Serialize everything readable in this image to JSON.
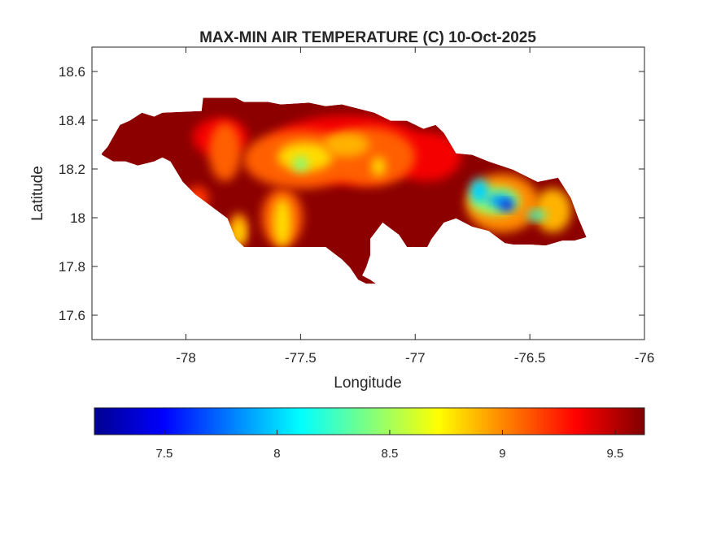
{
  "chart_data": {
    "type": "heatmap",
    "title": "MAX-MIN AIR TEMPERATURE (C) 10-Oct-2025",
    "xlabel": "Longitude",
    "ylabel": "Latitude",
    "xlim": [
      -78.41,
      -76
    ],
    "ylim": [
      17.5,
      18.7
    ],
    "xticks": [
      -78,
      -77.5,
      -77,
      -76.5,
      -76
    ],
    "xtick_labels": [
      "-78",
      "-77.5",
      "-77",
      "-76.5",
      "-76"
    ],
    "yticks": [
      17.6,
      17.8,
      18,
      18.2,
      18.4,
      18.6
    ],
    "ytick_labels": [
      "17.6",
      "17.8",
      "18",
      "18.2",
      "18.4",
      "18.6"
    ],
    "grid": false,
    "colormap": "jet",
    "colorbar": {
      "location": "bottom",
      "clim": [
        7.19,
        9.63
      ],
      "ticks": [
        7.5,
        8,
        8.5,
        9,
        9.5
      ],
      "tick_labels": [
        "7.5",
        "8",
        "8.5",
        "9",
        "9.5"
      ]
    },
    "background_value": 9.6,
    "land_outline": [
      [
        -78.367,
        18.264
      ],
      [
        -78.342,
        18.291
      ],
      [
        -78.288,
        18.381
      ],
      [
        -78.246,
        18.398
      ],
      [
        -78.192,
        18.431
      ],
      [
        -78.139,
        18.415
      ],
      [
        -78.103,
        18.431
      ],
      [
        -77.932,
        18.438
      ],
      [
        -77.925,
        18.492
      ],
      [
        -77.783,
        18.492
      ],
      [
        -77.747,
        18.475
      ],
      [
        -77.641,
        18.475
      ],
      [
        -77.587,
        18.465
      ],
      [
        -77.463,
        18.472
      ],
      [
        -77.391,
        18.458
      ],
      [
        -77.32,
        18.465
      ],
      [
        -77.178,
        18.431
      ],
      [
        -77.107,
        18.398
      ],
      [
        -77.036,
        18.398
      ],
      [
        -76.964,
        18.365
      ],
      [
        -76.911,
        18.381
      ],
      [
        -76.875,
        18.348
      ],
      [
        -76.822,
        18.264
      ],
      [
        -76.751,
        18.258
      ],
      [
        -76.68,
        18.231
      ],
      [
        -76.573,
        18.197
      ],
      [
        -76.466,
        18.147
      ],
      [
        -76.377,
        18.164
      ],
      [
        -76.32,
        18.08
      ],
      [
        -76.288,
        17.997
      ],
      [
        -76.253,
        17.92
      ],
      [
        -76.306,
        17.906
      ],
      [
        -76.359,
        17.906
      ],
      [
        -76.431,
        17.886
      ],
      [
        -76.502,
        17.89
      ],
      [
        -76.573,
        17.89
      ],
      [
        -76.609,
        17.896
      ],
      [
        -76.68,
        17.946
      ],
      [
        -76.751,
        17.963
      ],
      [
        -76.822,
        17.997
      ],
      [
        -76.875,
        17.98
      ],
      [
        -76.929,
        17.913
      ],
      [
        -76.947,
        17.88
      ],
      [
        -77.036,
        17.88
      ],
      [
        -77.071,
        17.93
      ],
      [
        -77.142,
        17.98
      ],
      [
        -77.196,
        17.913
      ],
      [
        -77.196,
        17.846
      ],
      [
        -77.214,
        17.796
      ],
      [
        -77.231,
        17.763
      ],
      [
        -77.196,
        17.746
      ],
      [
        -77.171,
        17.729
      ],
      [
        -77.214,
        17.729
      ],
      [
        -77.249,
        17.746
      ],
      [
        -77.285,
        17.796
      ],
      [
        -77.32,
        17.829
      ],
      [
        -77.391,
        17.88
      ],
      [
        -77.463,
        17.88
      ],
      [
        -77.569,
        17.88
      ],
      [
        -77.747,
        17.88
      ],
      [
        -77.783,
        17.913
      ],
      [
        -77.819,
        17.997
      ],
      [
        -77.89,
        18.047
      ],
      [
        -77.961,
        18.097
      ],
      [
        -78.014,
        18.147
      ],
      [
        -78.068,
        18.231
      ],
      [
        -78.103,
        18.247
      ],
      [
        -78.139,
        18.231
      ],
      [
        -78.21,
        18.214
      ],
      [
        -78.263,
        18.231
      ],
      [
        -78.317,
        18.231
      ],
      [
        -78.367,
        18.258
      ]
    ],
    "hotspots": [
      {
        "lon": -77.85,
        "lat": 18.33,
        "rx": 0.12,
        "ry": 0.08,
        "value": 9.35
      },
      {
        "lon": -77.3,
        "lat": 18.28,
        "rx": 0.35,
        "ry": 0.14,
        "value": 9.35
      },
      {
        "lon": -76.95,
        "lat": 18.25,
        "rx": 0.15,
        "ry": 0.1,
        "value": 9.35
      },
      {
        "lon": -77.5,
        "lat": 18.24,
        "rx": 0.25,
        "ry": 0.12,
        "value": 9.1
      },
      {
        "lon": -77.2,
        "lat": 18.25,
        "rx": 0.2,
        "ry": 0.12,
        "value": 9.1
      },
      {
        "lon": -77.83,
        "lat": 18.27,
        "rx": 0.07,
        "ry": 0.12,
        "value": 9.1
      },
      {
        "lon": -77.95,
        "lat": 18.08,
        "rx": 0.05,
        "ry": 0.05,
        "value": 9.2
      },
      {
        "lon": -77.58,
        "lat": 18.0,
        "rx": 0.09,
        "ry": 0.12,
        "value": 9.1
      },
      {
        "lon": -77.77,
        "lat": 17.95,
        "rx": 0.04,
        "ry": 0.07,
        "value": 9.0
      },
      {
        "lon": -77.48,
        "lat": 18.25,
        "rx": 0.12,
        "ry": 0.06,
        "value": 8.8
      },
      {
        "lon": -77.3,
        "lat": 18.3,
        "rx": 0.1,
        "ry": 0.05,
        "value": 8.9
      },
      {
        "lon": -77.16,
        "lat": 18.21,
        "rx": 0.03,
        "ry": 0.04,
        "value": 8.8
      },
      {
        "lon": -77.58,
        "lat": 17.98,
        "rx": 0.04,
        "ry": 0.1,
        "value": 8.8
      },
      {
        "lon": -77.77,
        "lat": 17.94,
        "rx": 0.025,
        "ry": 0.05,
        "value": 8.8
      },
      {
        "lon": -77.5,
        "lat": 18.22,
        "rx": 0.03,
        "ry": 0.03,
        "value": 8.4
      },
      {
        "lon": -76.62,
        "lat": 18.06,
        "rx": 0.16,
        "ry": 0.12,
        "value": 9.0
      },
      {
        "lon": -76.4,
        "lat": 18.03,
        "rx": 0.08,
        "ry": 0.09,
        "value": 8.9
      },
      {
        "lon": -76.65,
        "lat": 18.07,
        "rx": 0.11,
        "ry": 0.06,
        "value": 8.5
      },
      {
        "lon": -76.72,
        "lat": 18.11,
        "rx": 0.04,
        "ry": 0.05,
        "value": 8.0
      },
      {
        "lon": -76.47,
        "lat": 18.01,
        "rx": 0.04,
        "ry": 0.02,
        "value": 8.2
      },
      {
        "lon": -76.63,
        "lat": 18.07,
        "rx": 0.06,
        "ry": 0.03,
        "value": 7.9
      },
      {
        "lon": -76.6,
        "lat": 18.05,
        "rx": 0.03,
        "ry": 0.02,
        "value": 7.45
      }
    ]
  }
}
